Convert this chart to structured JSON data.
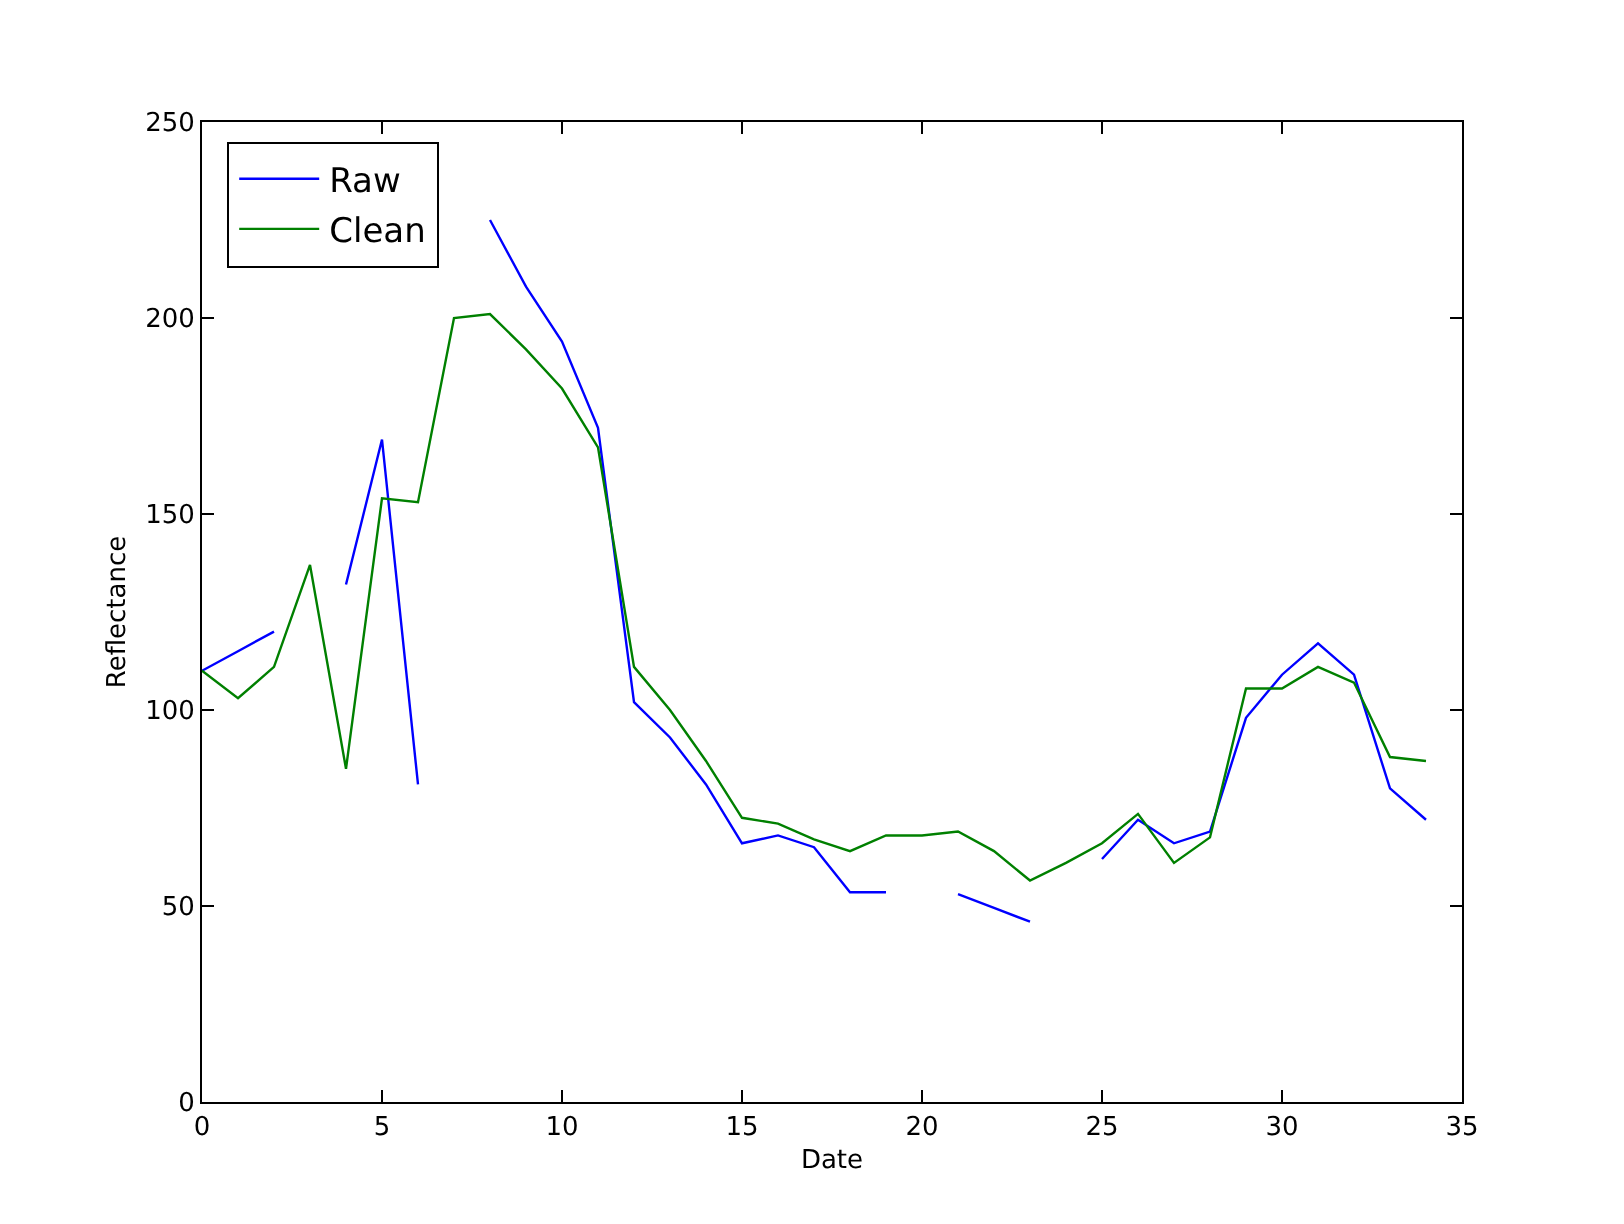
{
  "chart_data": {
    "type": "line",
    "xlabel": "Date",
    "ylabel": "Reflectance",
    "x": [
      0,
      1,
      2,
      3,
      4,
      5,
      6,
      7,
      8,
      9,
      10,
      11,
      12,
      13,
      14,
      15,
      16,
      17,
      18,
      19,
      20,
      21,
      22,
      23,
      24,
      25,
      26,
      27,
      28,
      29,
      30,
      31,
      32,
      33,
      34
    ],
    "xlim": [
      0,
      35
    ],
    "xticks": [
      0,
      5,
      10,
      15,
      20,
      25,
      30,
      35
    ],
    "ylim": [
      0,
      250
    ],
    "yticks": [
      0,
      50,
      100,
      150,
      200,
      250
    ],
    "legend": "top left",
    "marker": "none",
    "line_style": "solid",
    "series": [
      {
        "name": "Raw",
        "color": "#0000ff",
        "values": [
          110,
          115,
          120,
          null,
          132,
          169,
          81,
          null,
          225,
          208,
          194,
          172,
          102,
          93,
          81,
          66,
          68,
          65,
          53.5,
          53.5,
          null,
          53,
          49.5,
          46,
          null,
          62,
          72,
          66,
          69,
          98,
          109,
          117,
          109,
          80,
          72
        ]
      },
      {
        "name": "Clean",
        "color": "#008000",
        "values": [
          110,
          103,
          111,
          137,
          85,
          154,
          153,
          200,
          201,
          192,
          182,
          167,
          111,
          100,
          87,
          72.5,
          71,
          67,
          64,
          68,
          68,
          69,
          64,
          56.5,
          61,
          66,
          73.5,
          61,
          67.5,
          105.5,
          105.5,
          111,
          107,
          88,
          87
        ]
      }
    ]
  }
}
